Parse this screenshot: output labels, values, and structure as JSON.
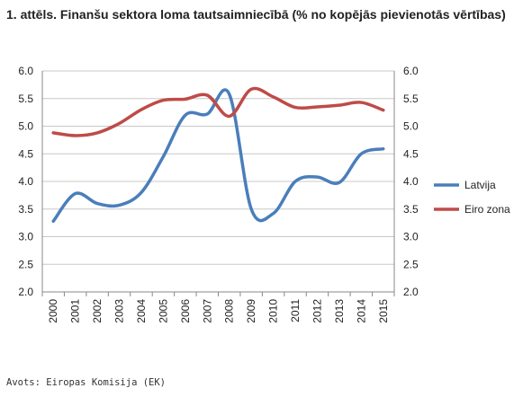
{
  "title": "1. attēls. Finanšu sektora loma tautsaimniecībā (% no kopējās pievienotās vērtības)",
  "source": "Avots: Eiropas Komisija (EK)",
  "chart_data": {
    "type": "line",
    "title": "1. attēls. Finanšu sektora loma tautsaimniecībā (% no kopējās pievienotās vērtības)",
    "xlabel": "",
    "ylabel": "",
    "categories": [
      "2000",
      "2001",
      "2002",
      "2003",
      "2004",
      "2005",
      "2006",
      "2007",
      "2008",
      "2009",
      "2010",
      "2011",
      "2012",
      "2013",
      "2014",
      "2015"
    ],
    "ylim": [
      2.0,
      6.0
    ],
    "yticks": [
      "2.0",
      "2.5",
      "3.0",
      "3.5",
      "4.0",
      "4.5",
      "5.0",
      "5.5",
      "6.0"
    ],
    "y2ticks": [
      "2.0",
      "2.5",
      "3.0",
      "3.5",
      "4.0",
      "4.5",
      "5.0",
      "5.5",
      "6.0"
    ],
    "grid": "horizontal",
    "legend_position": "right",
    "series": [
      {
        "name": "Latvija",
        "color": "#4a7ebb",
        "values": [
          3.28,
          3.78,
          3.6,
          3.57,
          3.8,
          4.45,
          5.2,
          5.22,
          5.58,
          3.5,
          3.42,
          4.0,
          4.08,
          3.98,
          4.5,
          4.59
        ]
      },
      {
        "name": "Eiro zona",
        "color": "#be4b48",
        "values": [
          4.88,
          4.83,
          4.88,
          5.05,
          5.3,
          5.47,
          5.49,
          5.56,
          5.18,
          5.67,
          5.53,
          5.34,
          5.35,
          5.38,
          5.43,
          5.29
        ]
      }
    ]
  }
}
